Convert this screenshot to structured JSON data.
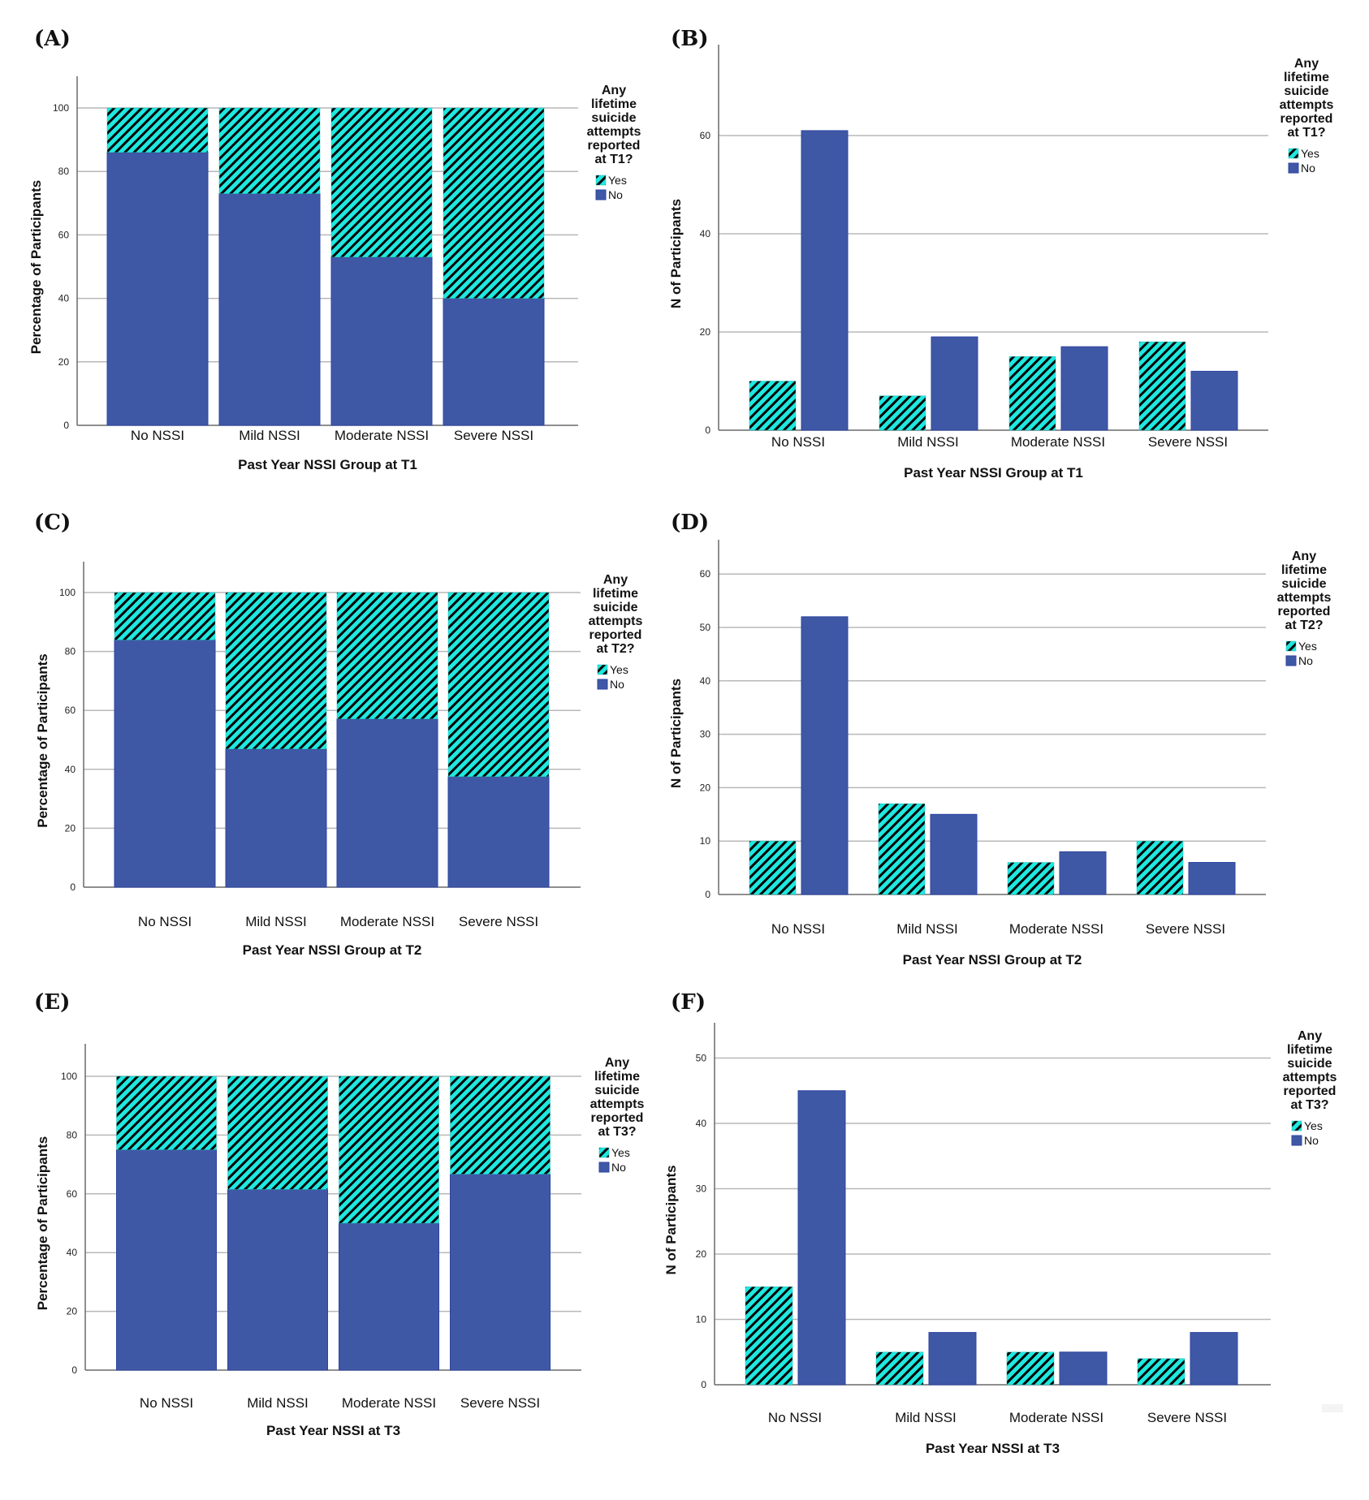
{
  "legend_colors": {
    "yes_fill": "#1ee8e0",
    "yes_stripe": "#000000",
    "no_fill": "#3f58a6"
  },
  "chart_data": [
    {
      "panel": "(A)",
      "type": "bar",
      "stacked": true,
      "categories": [
        "No NSSI",
        "Mild NSSI",
        "Moderate NSSI",
        "Severe NSSI"
      ],
      "series": [
        {
          "name": "No",
          "values": [
            86,
            73,
            53,
            40
          ]
        },
        {
          "name": "Yes",
          "values": [
            14,
            27,
            47,
            60
          ]
        }
      ],
      "xlabel": "Past Year NSSI Group at T1",
      "ylabel": "Percentage of Participants",
      "yticks": [
        0,
        20,
        40,
        60,
        80,
        100
      ],
      "ylim": [
        0,
        110
      ],
      "grid": true,
      "legend": {
        "title": [
          "Any",
          "lifetime",
          "suicide",
          "attempts",
          "reported",
          "at T1?"
        ],
        "items": [
          "Yes",
          "No"
        ],
        "placement": "right"
      }
    },
    {
      "panel": "(B)",
      "type": "bar",
      "stacked": false,
      "categories": [
        "No NSSI",
        "Mild NSSI",
        "Moderate NSSI",
        "Severe NSSI"
      ],
      "series": [
        {
          "name": "Yes",
          "values": [
            10,
            7,
            15,
            18
          ]
        },
        {
          "name": "No",
          "values": [
            61,
            19,
            17,
            12
          ]
        }
      ],
      "xlabel": "Past Year NSSI Group at T1",
      "ylabel": "N of Participants",
      "yticks": [
        0,
        20,
        40,
        60
      ],
      "ylim": [
        0,
        76
      ],
      "grid": true,
      "legend": {
        "title": [
          "Any",
          "lifetime",
          "suicide",
          "attempts",
          "reported",
          "at T1?"
        ],
        "items": [
          "Yes",
          "No"
        ],
        "placement": "right"
      }
    },
    {
      "panel": "(C)",
      "type": "bar",
      "stacked": true,
      "categories": [
        "No NSSI",
        "Mild NSSI",
        "Moderate NSSI",
        "Severe NSSI"
      ],
      "series": [
        {
          "name": "No",
          "values": [
            83.9,
            46.9,
            57.1,
            37.5
          ]
        },
        {
          "name": "Yes",
          "values": [
            16.1,
            53.1,
            42.9,
            62.5
          ]
        }
      ],
      "xlabel": "Past Year NSSI Group at T2",
      "ylabel": "Percentage of Participants",
      "yticks": [
        0,
        20,
        40,
        60,
        80,
        100
      ],
      "ylim": [
        0,
        110
      ],
      "grid": true,
      "legend": {
        "title": [
          "Any",
          "lifetime",
          "suicide",
          "attempts",
          "reported",
          "at T2?"
        ],
        "items": [
          "Yes",
          "No"
        ],
        "placement": "right"
      }
    },
    {
      "panel": "(D)",
      "type": "bar",
      "stacked": false,
      "categories": [
        "No NSSI",
        "Mild NSSI",
        "Moderate NSSI",
        "Severe NSSI"
      ],
      "series": [
        {
          "name": "Yes",
          "values": [
            10,
            17,
            6,
            10
          ]
        },
        {
          "name": "No",
          "values": [
            52,
            15,
            8,
            6
          ]
        }
      ],
      "xlabel": "Past Year NSSI Group at T2",
      "ylabel": "N of Participants",
      "yticks": [
        0,
        10,
        20,
        30,
        40,
        50,
        60
      ],
      "ylim": [
        0,
        66
      ],
      "grid": true,
      "legend": {
        "title": [
          "Any",
          "lifetime",
          "suicide",
          "attempts",
          "reported",
          "at T2?"
        ],
        "items": [
          "Yes",
          "No"
        ],
        "placement": "right"
      }
    },
    {
      "panel": "(E)",
      "type": "bar",
      "stacked": true,
      "categories": [
        "No NSSI",
        "Mild NSSI",
        "Moderate NSSI",
        "Severe NSSI"
      ],
      "series": [
        {
          "name": "No",
          "values": [
            75,
            61.5,
            50,
            66.7
          ]
        },
        {
          "name": "Yes",
          "values": [
            25,
            38.5,
            50,
            33.3
          ]
        }
      ],
      "xlabel": "Past Year NSSI at T3",
      "ylabel": "Percentage of Participants",
      "yticks": [
        0,
        20,
        40,
        60,
        80,
        100
      ],
      "ylim": [
        0,
        110
      ],
      "grid": true,
      "legend": {
        "title": [
          "Any",
          "lifetime",
          "suicide",
          "attempts",
          "reported",
          "at T3?"
        ],
        "items": [
          "Yes",
          "No"
        ],
        "placement": "right"
      }
    },
    {
      "panel": "(F)",
      "type": "bar",
      "stacked": false,
      "categories": [
        "No NSSI",
        "Mild NSSI",
        "Moderate NSSI",
        "Severe NSSI"
      ],
      "series": [
        {
          "name": "Yes",
          "values": [
            15,
            5,
            5,
            4
          ]
        },
        {
          "name": "No",
          "values": [
            45,
            8,
            5,
            8
          ]
        }
      ],
      "xlabel": "Past Year NSSI at T3",
      "ylabel": "N of Participants",
      "yticks": [
        0,
        10,
        20,
        30,
        40,
        50
      ],
      "ylim": [
        0,
        55
      ],
      "grid": true,
      "legend": {
        "title": [
          "Any",
          "lifetime",
          "suicide",
          "attempts",
          "reported",
          "at T3?"
        ],
        "items": [
          "Yes",
          "No"
        ],
        "placement": "right"
      }
    }
  ]
}
